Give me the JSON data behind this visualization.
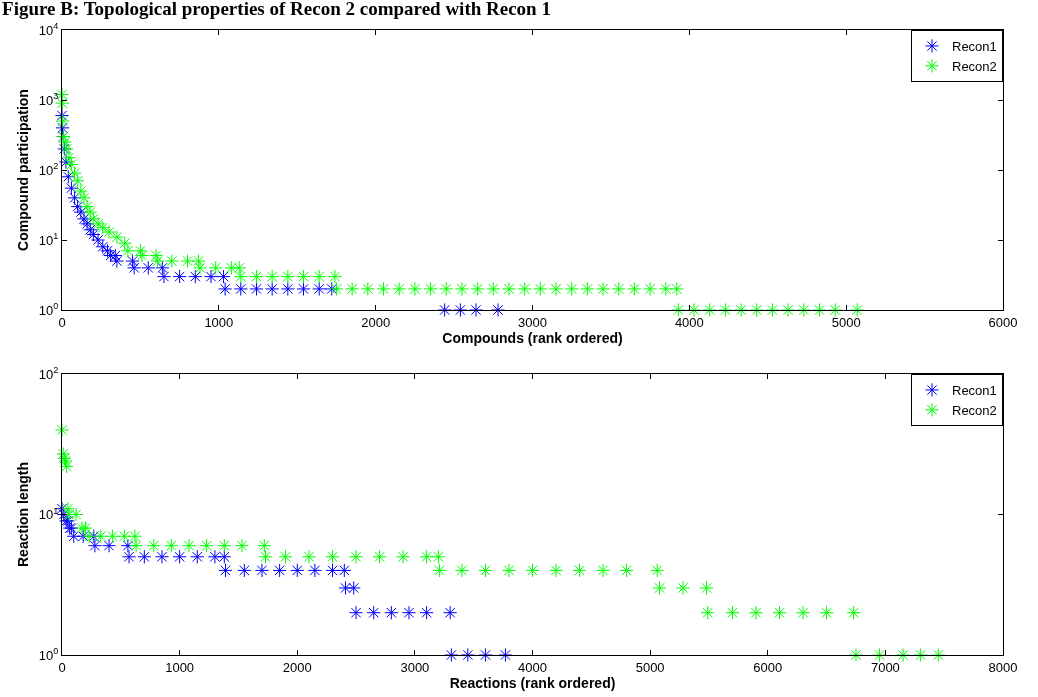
{
  "chart_data": [
    {
      "type": "scatter",
      "title": "Figure B: Topological properties of Recon 2 compared with Recon 1",
      "xlabel": "Compounds (rank ordered)",
      "ylabel": "Compound participation",
      "log": "y",
      "grid": false,
      "legend": "top right",
      "marker": "cross",
      "xlim": [
        0,
        6000
      ],
      "xticks": [
        0,
        1000,
        2000,
        3000,
        4000,
        5000,
        6000
      ],
      "ylim": [
        1,
        10000
      ],
      "yticks": [
        {
          "value": 1,
          "label": "10$^{0}$"
        },
        {
          "value": 10,
          "label": "10$^{1}$"
        },
        {
          "value": 100,
          "label": "10$^{2}$"
        },
        {
          "value": 1000,
          "label": "10$^{3}$"
        },
        {
          "value": 10000,
          "label": "10$^{4}$"
        }
      ],
      "series": [
        {
          "name": "Recon1",
          "color": "#0000ff",
          "x": [
            0,
            3,
            8,
            15,
            25,
            40,
            60,
            80,
            100,
            120,
            140,
            160,
            180,
            200,
            230,
            260,
            290,
            310,
            340,
            350,
            450,
            460,
            550,
            640,
            650,
            750,
            850,
            950,
            1030,
            1040,
            1140,
            1240,
            1340,
            1440,
            1540,
            1640,
            1720,
            2440,
            2540,
            2640,
            2780
          ],
          "values": [
            600,
            400,
            300,
            200,
            130,
            80,
            55,
            40,
            30,
            25,
            20,
            17,
            14,
            12,
            10,
            8,
            7,
            6,
            6,
            5,
            5,
            4,
            4,
            4,
            3,
            3,
            3,
            3,
            3,
            2,
            2,
            2,
            2,
            2,
            2,
            2,
            2,
            1,
            1,
            1,
            1
          ]
        },
        {
          "name": "Recon2",
          "color": "#00ff00",
          "x": [
            0,
            2,
            5,
            10,
            20,
            30,
            45,
            60,
            80,
            100,
            120,
            140,
            160,
            180,
            200,
            230,
            260,
            300,
            350,
            400,
            420,
            500,
            510,
            600,
            610,
            700,
            800,
            870,
            880,
            980,
            1080,
            1130,
            1140,
            1240,
            1340,
            1440,
            1540,
            1640,
            1740,
            1750,
            1850,
            1950,
            2050,
            2150,
            2250,
            2350,
            2450,
            2550,
            2650,
            2750,
            2850,
            2950,
            3050,
            3150,
            3250,
            3350,
            3450,
            3550,
            3650,
            3750,
            3850,
            3920,
            3930,
            4030,
            4130,
            4230,
            4330,
            4430,
            4530,
            4630,
            4730,
            4830,
            4930,
            5070
          ],
          "values": [
            1200,
            900,
            500,
            300,
            250,
            200,
            150,
            120,
            90,
            70,
            50,
            40,
            30,
            25,
            20,
            17,
            15,
            13,
            11,
            9,
            7,
            7,
            6,
            6,
            5,
            5,
            5,
            5,
            4,
            4,
            4,
            4,
            3,
            3,
            3,
            3,
            3,
            3,
            3,
            2,
            2,
            2,
            2,
            2,
            2,
            2,
            2,
            2,
            2,
            2,
            2,
            2,
            2,
            2,
            2,
            2,
            2,
            2,
            2,
            2,
            2,
            2,
            1,
            1,
            1,
            1,
            1,
            1,
            1,
            1,
            1,
            1,
            1,
            1
          ]
        }
      ]
    },
    {
      "type": "scatter",
      "xlabel": "Reactions (rank ordered)",
      "ylabel": "Reaction length",
      "log": "y",
      "grid": false,
      "legend": "top right",
      "marker": "cross",
      "xlim": [
        0,
        8000
      ],
      "xticks": [
        0,
        1000,
        2000,
        3000,
        4000,
        5000,
        6000,
        7000,
        8000
      ],
      "ylim": [
        1,
        100
      ],
      "yticks": [
        {
          "value": 1,
          "label": "10$^{0}$"
        },
        {
          "value": 10,
          "label": "10$^{1}$"
        },
        {
          "value": 100,
          "label": "10$^{2}$"
        }
      ],
      "series": [
        {
          "name": "Recon1",
          "color": "#0000ff",
          "x": [
            0,
            15,
            35,
            50,
            65,
            80,
            100,
            180,
            270,
            280,
            400,
            560,
            570,
            700,
            850,
            1000,
            1150,
            1300,
            1380,
            1390,
            1550,
            1700,
            1850,
            2000,
            2150,
            2300,
            2400,
            2410,
            2480,
            2500,
            2650,
            2800,
            2950,
            3100,
            3300,
            3310,
            3450,
            3600,
            3770
          ],
          "values": [
            11,
            10,
            9,
            9,
            8,
            8,
            7,
            7,
            7,
            6,
            6,
            6,
            5,
            5,
            5,
            5,
            5,
            5,
            5,
            4,
            4,
            4,
            4,
            4,
            4,
            4,
            4,
            3,
            3,
            2,
            2,
            2,
            2,
            2,
            2,
            1,
            1,
            1,
            1
          ]
        },
        {
          "name": "Recon2",
          "color": "#00ff00",
          "x": [
            0,
            10,
            20,
            30,
            40,
            50,
            60,
            120,
            170,
            200,
            230,
            330,
            430,
            530,
            620,
            630,
            780,
            930,
            1080,
            1230,
            1380,
            1530,
            1720,
            1730,
            1900,
            2100,
            2300,
            2500,
            2700,
            2900,
            3100,
            3200,
            3210,
            3400,
            3600,
            3800,
            4000,
            4200,
            4400,
            4600,
            4800,
            5060,
            5080,
            5280,
            5480,
            5490,
            5700,
            5900,
            6100,
            6300,
            6500,
            6730,
            6750,
            6950,
            7150,
            7300,
            7450
          ],
          "values": [
            40,
            27,
            25,
            24,
            22,
            11,
            10,
            10,
            8,
            8,
            7,
            7,
            7,
            7,
            7,
            6,
            6,
            6,
            6,
            6,
            6,
            6,
            6,
            5,
            5,
            5,
            5,
            5,
            5,
            5,
            5,
            5,
            4,
            4,
            4,
            4,
            4,
            4,
            4,
            4,
            4,
            4,
            3,
            3,
            3,
            2,
            2,
            2,
            2,
            2,
            2,
            2,
            1,
            1,
            1,
            1,
            1
          ]
        }
      ]
    }
  ]
}
